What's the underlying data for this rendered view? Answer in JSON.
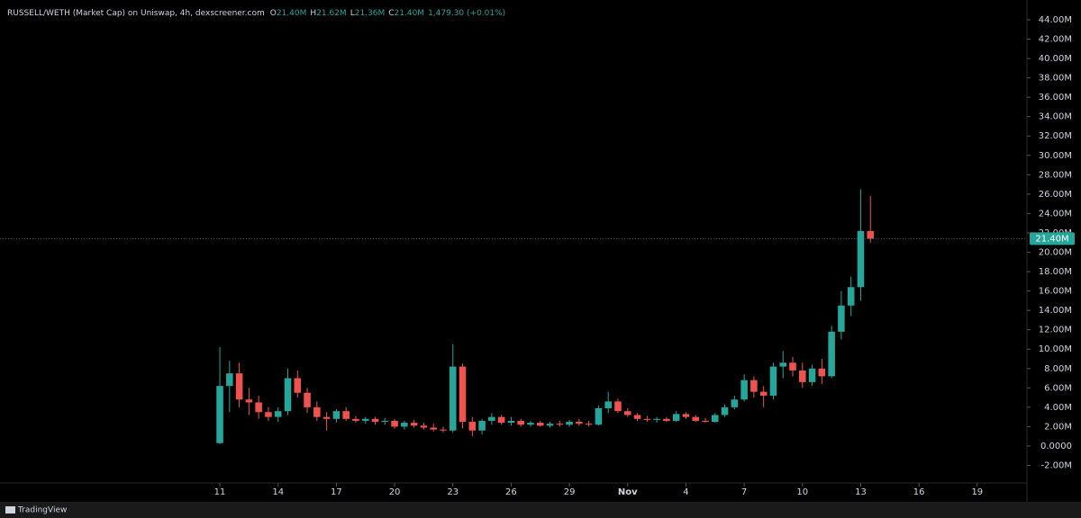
{
  "chart_data": {
    "type": "candlestick",
    "title": "RUSSELL/WETH (Market Cap) on Uniswap, 4h, dexscreener.com",
    "ohlc": [
      {
        "prefix": "O",
        "label": "21.40M"
      },
      {
        "prefix": "H",
        "label": "21.62M"
      },
      {
        "prefix": "L",
        "label": "21.36M"
      },
      {
        "prefix": "C",
        "label": "21.40M"
      }
    ],
    "change": "1,479.30 (+0.01%)",
    "branding": "TradingView",
    "up_color": "#26a69a",
    "down_color": "#ef5350",
    "x": [
      11,
      11.5,
      12,
      12.5,
      13,
      13.5,
      14,
      14.5,
      15,
      15.5,
      16,
      16.5,
      17,
      17.5,
      18,
      18.5,
      19,
      19.5,
      20,
      20.5,
      21,
      21.5,
      22,
      22.5,
      23,
      23.5,
      24,
      24.5,
      25,
      25.5,
      26,
      26.5,
      27,
      27.5,
      28,
      28.5,
      29,
      29.5,
      30,
      30.5,
      31,
      31.5,
      32,
      32.5,
      33,
      33.5,
      34,
      34.5,
      35,
      35.5,
      36,
      36.5,
      37,
      37.5,
      38,
      38.5,
      39,
      39.5,
      40,
      40.5,
      41,
      41.5,
      42,
      42.5,
      43,
      43.5,
      44,
      44.5
    ],
    "open": [
      0.3,
      6.2,
      7.5,
      4.8,
      4.5,
      3.5,
      3.0,
      3.6,
      7.0,
      5.5,
      4.0,
      3.0,
      2.8,
      3.6,
      2.8,
      2.6,
      2.8,
      2.5,
      2.6,
      2.0,
      2.4,
      2.1,
      1.9,
      1.7,
      1.6,
      8.2,
      2.5,
      1.6,
      2.6,
      3.0,
      2.4,
      2.6,
      2.2,
      2.4,
      2.1,
      2.3,
      2.2,
      2.5,
      2.3,
      2.2,
      3.9,
      4.6,
      3.6,
      3.2,
      2.8,
      2.7,
      2.8,
      2.6,
      3.3,
      3.0,
      2.6,
      2.5,
      3.2,
      4.0,
      4.8,
      6.8,
      5.6,
      5.2,
      8.2,
      8.6,
      7.8,
      6.6,
      8.0,
      7.2,
      11.8,
      14.5,
      16.4,
      22.2
    ],
    "high": [
      10.2,
      8.8,
      8.6,
      6.0,
      5.2,
      4.0,
      4.0,
      8.0,
      7.8,
      6.0,
      4.6,
      3.5,
      3.8,
      4.0,
      3.1,
      3.0,
      3.0,
      2.9,
      2.8,
      2.6,
      2.7,
      2.4,
      2.3,
      2.0,
      10.5,
      8.5,
      3.0,
      2.8,
      3.4,
      3.2,
      3.0,
      2.8,
      2.6,
      2.6,
      2.5,
      2.6,
      2.7,
      2.8,
      2.6,
      4.2,
      5.6,
      4.9,
      3.9,
      3.4,
      3.1,
      3.0,
      3.0,
      3.6,
      3.5,
      3.2,
      2.9,
      3.4,
      4.3,
      5.2,
      7.4,
      7.2,
      6.2,
      8.6,
      9.8,
      9.2,
      8.6,
      8.4,
      9.0,
      12.4,
      16.0,
      17.5,
      26.5,
      25.8
    ],
    "low": [
      0.2,
      3.5,
      4.0,
      3.2,
      2.8,
      2.6,
      2.5,
      3.2,
      5.0,
      3.4,
      2.6,
      1.6,
      2.4,
      2.6,
      2.4,
      2.3,
      2.2,
      2.2,
      1.8,
      1.7,
      1.9,
      1.7,
      1.5,
      1.4,
      1.4,
      1.8,
      1.0,
      1.2,
      2.2,
      2.2,
      2.1,
      2.0,
      2.0,
      2.0,
      1.9,
      2.0,
      2.0,
      2.1,
      2.0,
      2.1,
      3.4,
      3.4,
      3.0,
      2.6,
      2.5,
      2.4,
      2.5,
      2.5,
      2.8,
      2.5,
      2.4,
      2.4,
      3.0,
      3.8,
      4.6,
      5.0,
      4.0,
      4.8,
      7.0,
      7.2,
      6.0,
      6.2,
      6.4,
      7.0,
      11.0,
      13.4,
      15.0,
      21.0
    ],
    "close": [
      6.2,
      7.5,
      4.8,
      4.5,
      3.5,
      3.0,
      3.6,
      7.0,
      5.5,
      4.0,
      3.0,
      2.8,
      3.6,
      2.8,
      2.6,
      2.8,
      2.5,
      2.6,
      2.0,
      2.4,
      2.1,
      1.9,
      1.7,
      1.6,
      8.2,
      2.5,
      1.6,
      2.6,
      3.0,
      2.4,
      2.6,
      2.2,
      2.4,
      2.1,
      2.3,
      2.2,
      2.5,
      2.3,
      2.2,
      3.9,
      4.6,
      3.6,
      3.2,
      2.8,
      2.7,
      2.8,
      2.6,
      3.3,
      3.0,
      2.6,
      2.5,
      3.2,
      4.0,
      4.8,
      6.8,
      5.6,
      5.2,
      8.2,
      8.6,
      7.8,
      6.6,
      8.0,
      7.2,
      11.8,
      14.5,
      16.4,
      22.2,
      21.4
    ],
    "last_price": {
      "value": 21.4,
      "label": "21.40M"
    },
    "xlim": [
      -0.32,
      52.56
    ],
    "xticks": [
      11,
      14,
      17,
      20,
      23,
      26,
      29,
      {
        "value": 32,
        "label": "Nov"
      },
      {
        "value": 35,
        "label": "4"
      },
      {
        "value": 38,
        "label": "7"
      },
      {
        "value": 41,
        "label": "10"
      },
      {
        "value": 44,
        "label": "13"
      },
      {
        "value": 47,
        "label": "16"
      },
      {
        "value": 50,
        "label": "19"
      }
    ],
    "ylim": [
      -3.81,
      46.04
    ],
    "yticks": [
      {
        "value": -2,
        "label": "-2.00M"
      },
      {
        "value": 0,
        "label": "0.0000"
      },
      {
        "value": 2,
        "label": "2.00M"
      },
      {
        "value": 4,
        "label": "4.00M"
      },
      {
        "value": 6,
        "label": "6.00M"
      },
      {
        "value": 8,
        "label": "8.00M"
      },
      {
        "value": 10,
        "label": "10.00M"
      },
      {
        "value": 12,
        "label": "12.00M"
      },
      {
        "value": 14,
        "label": "14.00M"
      },
      {
        "value": 16,
        "label": "16.00M"
      },
      {
        "value": 18,
        "label": "18.00M"
      },
      {
        "value": 20,
        "label": "20.00M"
      },
      {
        "value": 22,
        "label": "22.00M"
      },
      {
        "value": 24,
        "label": "24.00M"
      },
      {
        "value": 26,
        "label": "26.00M"
      },
      {
        "value": 28,
        "label": "28.00M"
      },
      {
        "value": 30,
        "label": "30.00M"
      },
      {
        "value": 32,
        "label": "32.00M"
      },
      {
        "value": 34,
        "label": "34.00M"
      },
      {
        "value": 36,
        "label": "36.00M"
      },
      {
        "value": 38,
        "label": "38.00M"
      },
      {
        "value": 40,
        "label": "40.00M"
      },
      {
        "value": 42,
        "label": "42.00M"
      },
      {
        "value": 44,
        "label": "44.00M"
      }
    ]
  }
}
